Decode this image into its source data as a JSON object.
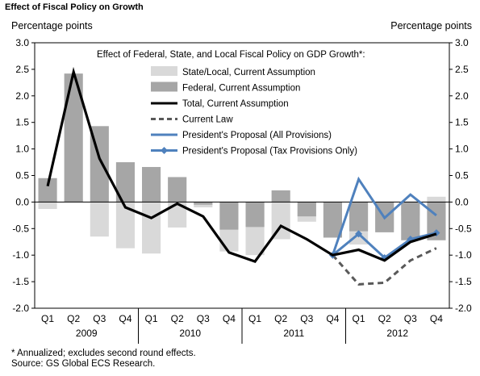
{
  "header": {
    "title": "Effect of Fiscal Policy on Growth"
  },
  "units": {
    "left": "Percentage points",
    "right": "Percentage points"
  },
  "footnote": {
    "line1": "* Annualized; excludes second round effects.",
    "line2": "Source: GS Global ECS Research."
  },
  "colors": {
    "state_local": "#d9d9d9",
    "federal": "#a6a6a6",
    "total": "#000000",
    "current_law": "#595959",
    "proposal_all": "#4f81bd",
    "proposal_tax": "#4f81bd"
  },
  "chart_data": {
    "type": "bar",
    "title": "Effect of Federal, State, and Local Fiscal Policy on GDP Growth*:",
    "ylabel": "Percentage points",
    "ylim": [
      -2.0,
      3.0
    ],
    "yticks": [
      "3.0",
      "2.5",
      "2.0",
      "1.5",
      "1.0",
      "0.5",
      "0.0",
      "-0.5",
      "-1.0",
      "-1.5",
      "-2.0"
    ],
    "categories": [
      "Q1",
      "Q2",
      "Q3",
      "Q4",
      "Q1",
      "Q2",
      "Q3",
      "Q4",
      "Q1",
      "Q2",
      "Q3",
      "Q4",
      "Q1",
      "Q2",
      "Q3",
      "Q4"
    ],
    "year_labels": [
      {
        "label": "2009",
        "quarters": [
          0,
          3
        ]
      },
      {
        "label": "2010",
        "quarters": [
          4,
          7
        ]
      },
      {
        "label": "2011",
        "quarters": [
          8,
          11
        ]
      },
      {
        "label": "2012",
        "quarters": [
          12,
          15
        ]
      }
    ],
    "series": [
      {
        "name": "State/Local, Current Assumption",
        "kind": "bar",
        "values": [
          -0.13,
          0.05,
          -0.65,
          -0.87,
          -0.97,
          -0.48,
          -0.1,
          -0.93,
          -1.0,
          -0.7,
          -0.37,
          -0.62,
          -0.8,
          -0.52,
          -0.25,
          0.1
        ]
      },
      {
        "name": "Federal, Current Assumption",
        "kind": "bar",
        "values": [
          0.45,
          2.42,
          1.43,
          0.75,
          0.66,
          0.47,
          -0.05,
          -0.52,
          -0.47,
          0.22,
          -0.27,
          -0.67,
          -0.55,
          -0.57,
          -0.72,
          -0.72
        ]
      },
      {
        "name": "Total, Current Assumption",
        "kind": "line",
        "values": [
          0.3,
          2.45,
          0.82,
          -0.1,
          -0.3,
          -0.03,
          -0.27,
          -0.95,
          -1.12,
          -0.45,
          -0.7,
          -1.0,
          -0.9,
          -1.1,
          -0.75,
          -0.6
        ]
      },
      {
        "name": "Current Law",
        "kind": "dashed-line",
        "values": [
          null,
          null,
          null,
          null,
          null,
          null,
          null,
          null,
          null,
          null,
          null,
          -1.0,
          -1.55,
          -1.52,
          -1.1,
          -0.87
        ]
      },
      {
        "name": "President's Proposal (All Provisions)",
        "kind": "line",
        "values": [
          null,
          null,
          null,
          null,
          null,
          null,
          null,
          null,
          null,
          null,
          null,
          -1.0,
          0.43,
          -0.3,
          0.14,
          -0.25
        ]
      },
      {
        "name": "President's Proposal (Tax Provisions Only)",
        "kind": "line-markers",
        "values": [
          null,
          null,
          null,
          null,
          null,
          null,
          null,
          null,
          null,
          null,
          null,
          -1.0,
          -0.6,
          -1.05,
          -0.7,
          -0.58
        ]
      }
    ]
  }
}
